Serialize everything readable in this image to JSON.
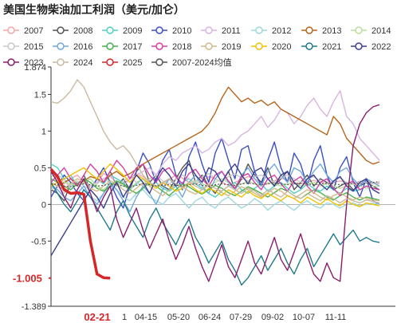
{
  "chart_data": {
    "type": "line",
    "title": "美国生物柴油加工利润（美元/加仑）",
    "ylim": [
      -1.389,
      1.874
    ],
    "yticks": [
      -1.389,
      -0.5,
      0,
      0.5,
      1,
      1.5,
      1.874
    ],
    "ytick_labels": [
      "-1.389",
      "-0.5",
      "0",
      "0.5",
      "1",
      "1.5",
      "1.874"
    ],
    "x_tick_labels": [
      "1",
      "04-15",
      "05-20",
      "06-24",
      "07-29",
      "09-02",
      "10-07",
      "11-11"
    ],
    "highlight_x_label": "02-21",
    "current_value_label": "-1.005",
    "current_value": -1.005,
    "legend_position": "top",
    "grid": false,
    "series": [
      {
        "name": "2007",
        "color": "#f4a7a7",
        "style": "line",
        "values": [
          0.45,
          0.32,
          0.28,
          0.35,
          0.4,
          0.3,
          0.25,
          0.3,
          0.42,
          0.38,
          0.3,
          0.28,
          0.35,
          0.42,
          0.38,
          0.3,
          0.25,
          0.28,
          0.34,
          0.4,
          0.36,
          0.3,
          0.28,
          0.32,
          0.38,
          0.35,
          0.3,
          0.26,
          0.3,
          0.34,
          0.38,
          0.35,
          0.3,
          0.28,
          0.32,
          0.36,
          0.33,
          0.3,
          0.28,
          0.3,
          0.33,
          0.3,
          0.28,
          0.3,
          0.32,
          0.3,
          0.28,
          0.3,
          0.32,
          0.3,
          0.28
        ]
      },
      {
        "name": "2008",
        "color": "#555555",
        "style": "line",
        "values": [
          0.2,
          0.15,
          0.05,
          0.3,
          0.25,
          0.4,
          0.2,
          0.35,
          0.3,
          0.45,
          0.25,
          0.35,
          0.2,
          0.45,
          0.55,
          0.3,
          0.4,
          0.25,
          0.2,
          0.35,
          0.5,
          0.6,
          0.3,
          0.4,
          0.25,
          0.15,
          0.3,
          0.45,
          0.2,
          0.35,
          0.55,
          0.4,
          0.3,
          0.5,
          0.25,
          0.35,
          0.45,
          0.2,
          0.3,
          0.4,
          0.25,
          0.35,
          0.3,
          0.2,
          0.25,
          0.3,
          0.2,
          0.25,
          0.3,
          0.25,
          0.2
        ]
      },
      {
        "name": "2009",
        "color": "#4fd1c5",
        "style": "line",
        "values": [
          0.55,
          0.5,
          0.35,
          0.4,
          0.25,
          0.3,
          0.2,
          0.35,
          0.28,
          0.4,
          0.35,
          0.3,
          0.2,
          0.28,
          0.35,
          0.25,
          0.3,
          0.22,
          0.18,
          0.25,
          0.3,
          0.35,
          0.28,
          0.22,
          0.15,
          0.1,
          0.18,
          0.25,
          0.3,
          0.2,
          0.15,
          0.22,
          0.28,
          0.18,
          0.25,
          0.3,
          0.22,
          0.15,
          0.2,
          0.28,
          0.22,
          0.18,
          0.25,
          0.2,
          0.15,
          0.22,
          0.18,
          0.2,
          0.25,
          0.22,
          0.2
        ]
      },
      {
        "name": "2010",
        "color": "#3b4fc4",
        "style": "line",
        "values": [
          0.1,
          0.25,
          0.4,
          0.3,
          0.15,
          0.05,
          0.2,
          0.35,
          0.5,
          0.3,
          0.1,
          -0.05,
          0.25,
          0.45,
          0.7,
          0.55,
          0.3,
          0.6,
          0.75,
          0.4,
          0.2,
          0.65,
          0.85,
          0.55,
          0.3,
          0.7,
          0.9,
          0.6,
          0.35,
          0.75,
          0.8,
          0.45,
          0.25,
          0.6,
          0.85,
          0.5,
          0.3,
          0.7,
          0.55,
          0.25,
          0.6,
          0.8,
          0.4,
          0.2,
          0.5,
          0.65,
          0.3,
          0.1,
          0.35,
          0.05,
          0.0
        ]
      },
      {
        "name": "2011",
        "color": "#d8b4e2",
        "style": "line",
        "values": [
          0.3,
          0.25,
          0.35,
          0.2,
          0.28,
          0.32,
          0.25,
          0.3,
          0.35,
          0.4,
          0.3,
          0.25,
          0.35,
          0.4,
          0.45,
          0.5,
          0.4,
          0.55,
          0.65,
          0.6,
          0.7,
          0.75,
          0.8,
          0.7,
          0.75,
          0.85,
          0.9,
          0.8,
          0.85,
          0.95,
          1.0,
          1.1,
          1.2,
          1.05,
          1.15,
          1.3,
          1.25,
          1.1,
          1.2,
          1.35,
          1.45,
          1.3,
          1.2,
          1.4,
          1.55,
          1.2,
          1.1,
          0.9,
          0.8,
          0.7,
          0.6
        ]
      },
      {
        "name": "2012",
        "color": "#9fd8e0",
        "style": "line",
        "values": [
          0.45,
          0.4,
          0.35,
          0.25,
          0.3,
          0.2,
          0.1,
          0.05,
          0.15,
          0.25,
          0.2,
          0.1,
          0.05,
          0.15,
          0.2,
          0.1,
          0.05,
          0.0,
          0.1,
          0.15,
          0.05,
          -0.05,
          0.05,
          0.1,
          0.0,
          -0.05,
          0.05,
          0.1,
          0.02,
          -0.05,
          0.0,
          0.08,
          0.02,
          -0.08,
          0.0,
          0.05,
          -0.02,
          -0.08,
          0.0,
          0.05,
          -0.02,
          -0.05,
          0.02,
          0.0,
          -0.05,
          0.0,
          0.02,
          -0.02,
          0.0,
          0.02,
          0.0
        ]
      },
      {
        "name": "2013",
        "color": "#b8651b",
        "style": "line",
        "values": [
          0.3,
          0.25,
          0.3,
          0.35,
          0.28,
          0.32,
          0.38,
          0.35,
          0.3,
          0.4,
          0.45,
          0.38,
          0.42,
          0.48,
          0.55,
          0.6,
          0.65,
          0.7,
          0.75,
          0.8,
          0.85,
          0.9,
          0.95,
          1.0,
          1.1,
          1.25,
          1.45,
          1.6,
          1.5,
          1.4,
          1.45,
          1.38,
          1.42,
          1.35,
          1.4,
          1.3,
          1.25,
          1.2,
          1.15,
          1.1,
          1.05,
          1.0,
          0.95,
          1.2,
          1.1,
          0.9,
          0.8,
          0.7,
          0.6,
          0.55,
          0.58
        ]
      },
      {
        "name": "2014",
        "color": "#b9df9b",
        "style": "line",
        "values": [
          0.4,
          0.35,
          0.3,
          0.28,
          0.25,
          0.3,
          0.35,
          0.25,
          0.2,
          0.28,
          0.32,
          0.25,
          0.2,
          0.3,
          0.35,
          0.28,
          0.22,
          0.3,
          0.35,
          0.28,
          0.25,
          0.3,
          0.32,
          0.28,
          0.25,
          0.3,
          0.35,
          0.3,
          0.25,
          0.28,
          0.32,
          0.28,
          0.25,
          0.3,
          0.28,
          0.25,
          0.28,
          0.3,
          0.25,
          0.28,
          0.3,
          0.25,
          0.28,
          0.25,
          0.22,
          0.25,
          0.28,
          0.25,
          0.22,
          0.25,
          0.25
        ]
      },
      {
        "name": "2015",
        "color": "#c9c9c9",
        "style": "line",
        "values": [
          0.2,
          0.25,
          0.15,
          0.28,
          0.32,
          0.25,
          0.2,
          0.28,
          0.35,
          0.3,
          0.25,
          0.32,
          0.38,
          0.3,
          0.25,
          0.35,
          0.4,
          0.32,
          0.28,
          0.35,
          0.4,
          0.35,
          0.3,
          0.38,
          0.42,
          0.35,
          0.3,
          0.38,
          0.42,
          0.36,
          0.32,
          0.38,
          0.4,
          0.35,
          0.3,
          0.36,
          0.4,
          0.35,
          0.3,
          0.34,
          0.38,
          0.32,
          0.28,
          0.32,
          0.36,
          0.3,
          0.28,
          0.32,
          0.3,
          0.28,
          0.3
        ]
      },
      {
        "name": "2016",
        "color": "#6fa8dc",
        "style": "line",
        "values": [
          0.25,
          0.2,
          0.1,
          0.05,
          0.15,
          0.25,
          0.1,
          0.0,
          0.15,
          0.3,
          0.2,
          0.05,
          -0.1,
          0.1,
          0.25,
          0.15,
          0.0,
          0.2,
          0.35,
          0.25,
          0.1,
          0.3,
          0.4,
          0.25,
          0.15,
          0.35,
          0.45,
          0.3,
          0.2,
          0.4,
          0.5,
          0.35,
          0.25,
          0.45,
          0.55,
          0.4,
          0.3,
          0.5,
          0.45,
          0.3,
          0.45,
          0.55,
          0.4,
          0.3,
          0.45,
          0.5,
          0.35,
          0.25,
          0.35,
          0.3,
          0.25
        ]
      },
      {
        "name": "2017",
        "color": "#49b24a",
        "style": "line",
        "values": [
          0.35,
          0.3,
          0.25,
          0.2,
          0.28,
          0.35,
          0.3,
          0.22,
          0.18,
          0.25,
          0.32,
          0.28,
          0.2,
          0.15,
          0.22,
          0.3,
          0.25,
          0.18,
          0.12,
          0.2,
          0.28,
          0.24,
          0.18,
          0.14,
          0.2,
          0.26,
          0.22,
          0.16,
          0.12,
          0.18,
          0.24,
          0.2,
          0.15,
          0.1,
          0.16,
          0.22,
          0.18,
          0.12,
          0.08,
          0.14,
          0.2,
          0.16,
          0.1,
          0.06,
          0.12,
          0.16,
          0.1,
          0.06,
          0.1,
          0.08,
          0.06
        ]
      },
      {
        "name": "2018",
        "color": "#d63fa7",
        "style": "line",
        "values": [
          0.3,
          0.4,
          0.5,
          0.35,
          0.25,
          0.4,
          0.55,
          0.45,
          0.3,
          0.45,
          0.6,
          0.5,
          0.35,
          0.5,
          0.55,
          0.4,
          0.3,
          0.45,
          0.5,
          0.38,
          0.28,
          0.42,
          0.48,
          0.35,
          0.25,
          0.4,
          0.45,
          0.32,
          0.22,
          0.38,
          0.42,
          0.3,
          0.2,
          0.35,
          0.4,
          0.28,
          0.18,
          0.32,
          0.38,
          0.25,
          0.15,
          0.3,
          0.35,
          0.22,
          0.12,
          0.28,
          0.32,
          0.2,
          0.25,
          0.22,
          0.2
        ]
      },
      {
        "name": "2019",
        "color": "#d2ba8a",
        "style": "line",
        "values": [
          0.3,
          0.25,
          0.2,
          0.28,
          0.35,
          0.3,
          0.22,
          0.18,
          0.25,
          0.32,
          0.28,
          0.2,
          0.15,
          0.22,
          0.3,
          0.25,
          0.18,
          0.12,
          0.2,
          0.28,
          0.24,
          0.18,
          0.14,
          0.2,
          0.26,
          0.22,
          0.16,
          0.12,
          0.18,
          0.24,
          0.2,
          0.15,
          0.1,
          0.16,
          0.22,
          0.18,
          0.12,
          0.08,
          0.14,
          0.2,
          0.16,
          0.1,
          0.06,
          0.12,
          0.16,
          0.1,
          0.06,
          0.1,
          0.08,
          0.06,
          0.05
        ]
      },
      {
        "name": "2020",
        "color": "#f2c200",
        "style": "line",
        "values": [
          0.25,
          0.3,
          0.35,
          0.4,
          0.45,
          0.5,
          0.42,
          0.35,
          0.45,
          0.55,
          0.48,
          0.4,
          0.3,
          0.4,
          0.35,
          0.28,
          0.22,
          0.3,
          0.25,
          0.18,
          0.22,
          0.28,
          0.2,
          0.15,
          0.22,
          0.18,
          0.12,
          0.2,
          0.15,
          0.1,
          0.18,
          0.12,
          0.08,
          0.15,
          0.1,
          0.05,
          0.12,
          0.08,
          0.02,
          0.1,
          0.05,
          0.0,
          0.08,
          0.02,
          -0.02,
          0.05,
          0.0,
          -0.03,
          0.02,
          0.0,
          -0.02
        ]
      },
      {
        "name": "2021",
        "color": "#1f7a8c",
        "style": "line",
        "values": [
          0.3,
          0.15,
          0.0,
          -0.1,
          0.05,
          0.2,
          0.1,
          -0.05,
          -0.2,
          -0.35,
          -0.1,
          0.05,
          -0.15,
          -0.3,
          -0.45,
          -0.2,
          -0.05,
          -0.25,
          -0.4,
          -0.55,
          -0.35,
          -0.2,
          -0.45,
          -0.6,
          -0.8,
          -0.65,
          -0.5,
          -0.75,
          -0.9,
          -1.1,
          -1.0,
          -0.85,
          -0.7,
          -0.9,
          -0.75,
          -0.6,
          -0.8,
          -0.95,
          -0.75,
          -0.6,
          -0.85,
          -0.7,
          -0.55,
          -0.4,
          -0.55,
          -0.45,
          -0.35,
          -0.5,
          -0.45,
          -0.5,
          -0.52
        ]
      },
      {
        "name": "2022",
        "color": "#3d3d8f",
        "style": "line",
        "values": [
          -0.7,
          -0.55,
          -0.4,
          -0.25,
          -0.1,
          0.05,
          0.2,
          0.1,
          -0.05,
          0.15,
          0.3,
          0.1,
          0.25,
          0.4,
          0.3,
          0.15,
          0.35,
          0.5,
          0.4,
          0.25,
          0.45,
          0.55,
          0.4,
          0.3,
          0.5,
          0.45,
          0.3,
          0.45,
          0.55,
          0.4,
          0.28,
          0.45,
          0.5,
          0.35,
          0.25,
          0.4,
          0.45,
          0.3,
          0.22,
          0.35,
          0.4,
          0.28,
          0.2,
          0.32,
          0.38,
          0.25,
          0.18,
          0.3,
          0.35,
          0.2,
          0.15
        ]
      },
      {
        "name": "2023",
        "color": "#8a1c6d",
        "style": "line",
        "values": [
          0.45,
          0.3,
          0.1,
          -0.05,
          0.2,
          0.35,
          0.15,
          -0.1,
          0.1,
          0.25,
          -0.2,
          -0.45,
          -0.25,
          -0.05,
          -0.35,
          -0.6,
          -0.4,
          -0.2,
          -0.5,
          -0.75,
          -0.55,
          -0.3,
          -0.6,
          -0.85,
          -1.05,
          -0.8,
          -0.55,
          -0.85,
          -1.0,
          -0.75,
          -0.5,
          -0.8,
          -0.95,
          -0.7,
          -0.45,
          -0.75,
          -0.9,
          -0.65,
          -0.4,
          -0.7,
          -0.95,
          -1.05,
          -0.8,
          -1.0,
          -1.05,
          0.0,
          0.8,
          1.1,
          1.25,
          1.33,
          1.36
        ]
      },
      {
        "name": "2024",
        "color": "#cbb9a0",
        "style": "line",
        "values": [
          1.4,
          1.38,
          1.45,
          1.55,
          1.7,
          1.6,
          1.4,
          1.2,
          1.0,
          0.85,
          0.75,
          0.8,
          0.7,
          0.55,
          0.4,
          0.3,
          0.25,
          0.3,
          0.35,
          0.28,
          0.22,
          0.3,
          0.25,
          0.2,
          0.28,
          0.22,
          0.18,
          0.25,
          0.2,
          0.15,
          0.22,
          0.18,
          0.12,
          0.2,
          0.15,
          0.1,
          0.18,
          0.12,
          0.08,
          0.15,
          0.1,
          0.05,
          0.12,
          0.08,
          0.02,
          0.08,
          0.05,
          0.02,
          0.06,
          0.04,
          0.02
        ]
      },
      {
        "name": "2025",
        "color": "#d62728",
        "style": "bold",
        "values": [
          0.48,
          0.38,
          0.2,
          0.15,
          0.16,
          0.14,
          -0.5,
          -0.95,
          -1.0,
          -1.005
        ]
      },
      {
        "name": "2007-2024均值",
        "color": "#555555",
        "style": "dashed",
        "values": [
          0.28,
          0.27,
          0.25,
          0.24,
          0.26,
          0.28,
          0.27,
          0.25,
          0.26,
          0.28,
          0.27,
          0.25,
          0.24,
          0.26,
          0.28,
          0.27,
          0.25,
          0.26,
          0.27,
          0.26,
          0.25,
          0.27,
          0.28,
          0.26,
          0.25,
          0.27,
          0.28,
          0.27,
          0.26,
          0.28,
          0.29,
          0.28,
          0.27,
          0.28,
          0.29,
          0.28,
          0.27,
          0.28,
          0.29,
          0.28,
          0.27,
          0.28,
          0.29,
          0.28,
          0.27,
          0.28,
          0.29,
          0.28,
          0.29,
          0.3,
          0.31
        ]
      }
    ]
  }
}
